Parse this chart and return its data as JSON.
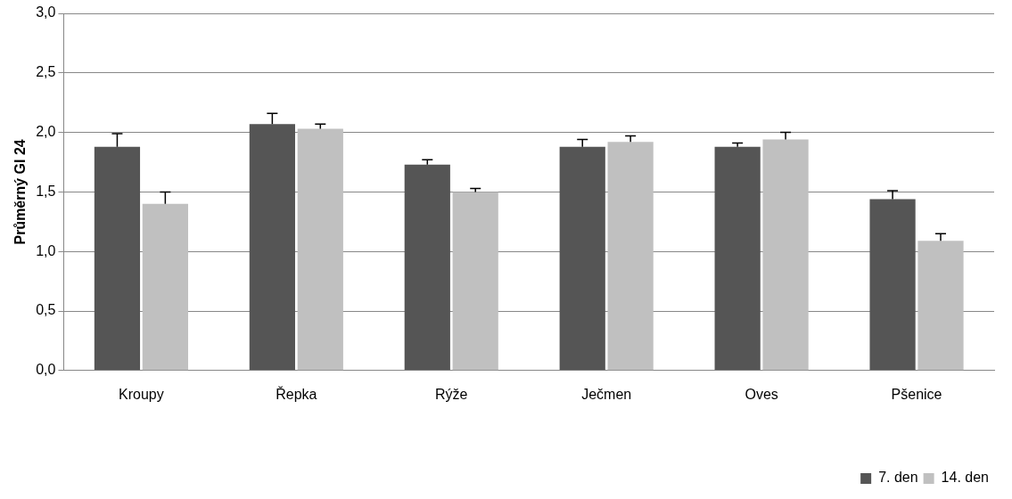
{
  "chart_data": {
    "type": "bar",
    "ylabel": "Průměrný GI 24",
    "categories": [
      "Kroupy",
      "Řepka",
      "Rýže",
      "Ječmen",
      "Oves",
      "Pšenice"
    ],
    "series": [
      {
        "name": "7. den",
        "color": "#555555",
        "values": [
          1.88,
          2.07,
          1.73,
          1.88,
          1.88,
          1.44
        ],
        "errors": [
          [
            1.88,
            1.99
          ],
          [
            2.07,
            2.16
          ],
          [
            1.73,
            1.77
          ],
          [
            1.88,
            1.94
          ],
          [
            1.88,
            1.91
          ],
          [
            1.44,
            1.51
          ]
        ]
      },
      {
        "name": "14. den",
        "color": "#c0c0c0",
        "values": [
          1.4,
          2.03,
          1.5,
          1.92,
          1.94,
          1.09
        ],
        "errors": [
          [
            1.4,
            1.5
          ],
          [
            2.03,
            2.07
          ],
          [
            1.5,
            1.53
          ],
          [
            1.92,
            1.97
          ],
          [
            1.94,
            2.0
          ],
          [
            1.09,
            1.15
          ]
        ]
      }
    ],
    "ylim": [
      0,
      3
    ],
    "yticks": [
      {
        "value": 0,
        "label": "0,0"
      },
      {
        "value": 0.5,
        "label": "0,5"
      },
      {
        "value": 1,
        "label": "1,0"
      },
      {
        "value": 1.5,
        "label": "1,5"
      },
      {
        "value": 2,
        "label": "2,0"
      },
      {
        "value": 2.5,
        "label": "2,5"
      },
      {
        "value": 3,
        "label": "3,0"
      }
    ],
    "grid": "y",
    "legend": "bottom right"
  }
}
